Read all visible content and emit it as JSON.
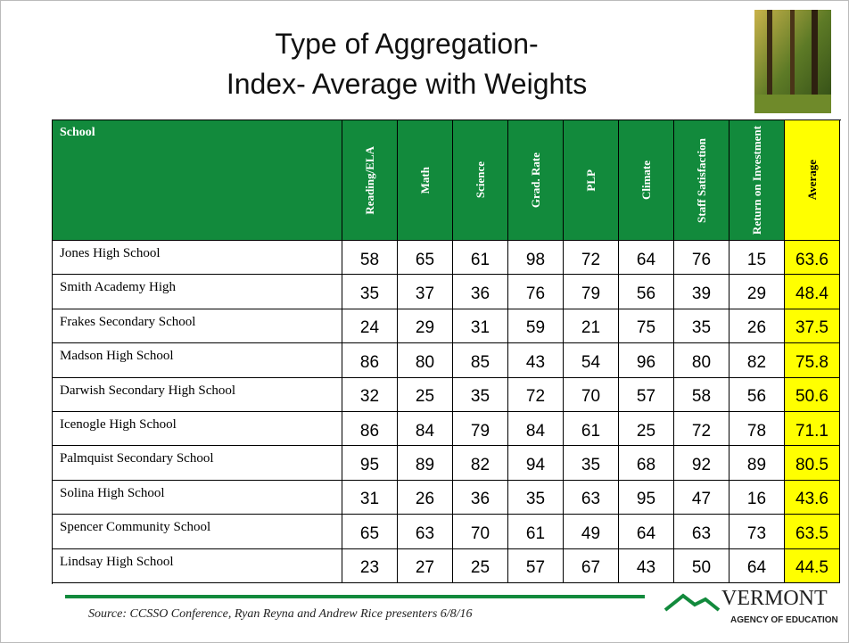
{
  "header": {
    "title_line1": "Type of Aggregation-",
    "title_line2": "Index- Average with Weights"
  },
  "table": {
    "columns": [
      "School",
      "Reading/ELA",
      "Math",
      "Science",
      "Grad. Rate",
      "PLP",
      "Climate",
      "Staff Satisfaction",
      "Return on Investment",
      "Average"
    ],
    "rows": [
      [
        "Jones High School",
        58,
        65,
        61,
        98,
        72,
        64,
        76,
        15,
        63.6
      ],
      [
        "Smith Academy High",
        35,
        37,
        36,
        76,
        79,
        56,
        39,
        29,
        48.4
      ],
      [
        "Frakes Secondary School",
        24,
        29,
        31,
        59,
        21,
        75,
        35,
        26,
        37.5
      ],
      [
        "Madson High School",
        86,
        80,
        85,
        43,
        54,
        96,
        80,
        82,
        75.8
      ],
      [
        "Darwish Secondary High School",
        32,
        25,
        35,
        72,
        70,
        57,
        58,
        56,
        50.6
      ],
      [
        "Icenogle High School",
        86,
        84,
        79,
        84,
        61,
        25,
        72,
        78,
        71.1
      ],
      [
        "Palmquist Secondary School",
        95,
        89,
        82,
        94,
        35,
        68,
        92,
        89,
        80.5
      ],
      [
        "Solina High School",
        31,
        26,
        36,
        35,
        63,
        95,
        47,
        16,
        43.6
      ],
      [
        "Spencer Community School",
        65,
        63,
        70,
        61,
        49,
        64,
        63,
        73,
        63.5
      ],
      [
        "Lindsay High School",
        23,
        27,
        25,
        57,
        67,
        43,
        50,
        64,
        44.5
      ]
    ]
  },
  "footer": {
    "source": "Source:  CCSSO Conference, Ryan Reyna and Andrew Rice presenters 6/8/16",
    "logo_name": "VERMONT",
    "logo_sub": "AGENCY OF EDUCATION"
  }
}
